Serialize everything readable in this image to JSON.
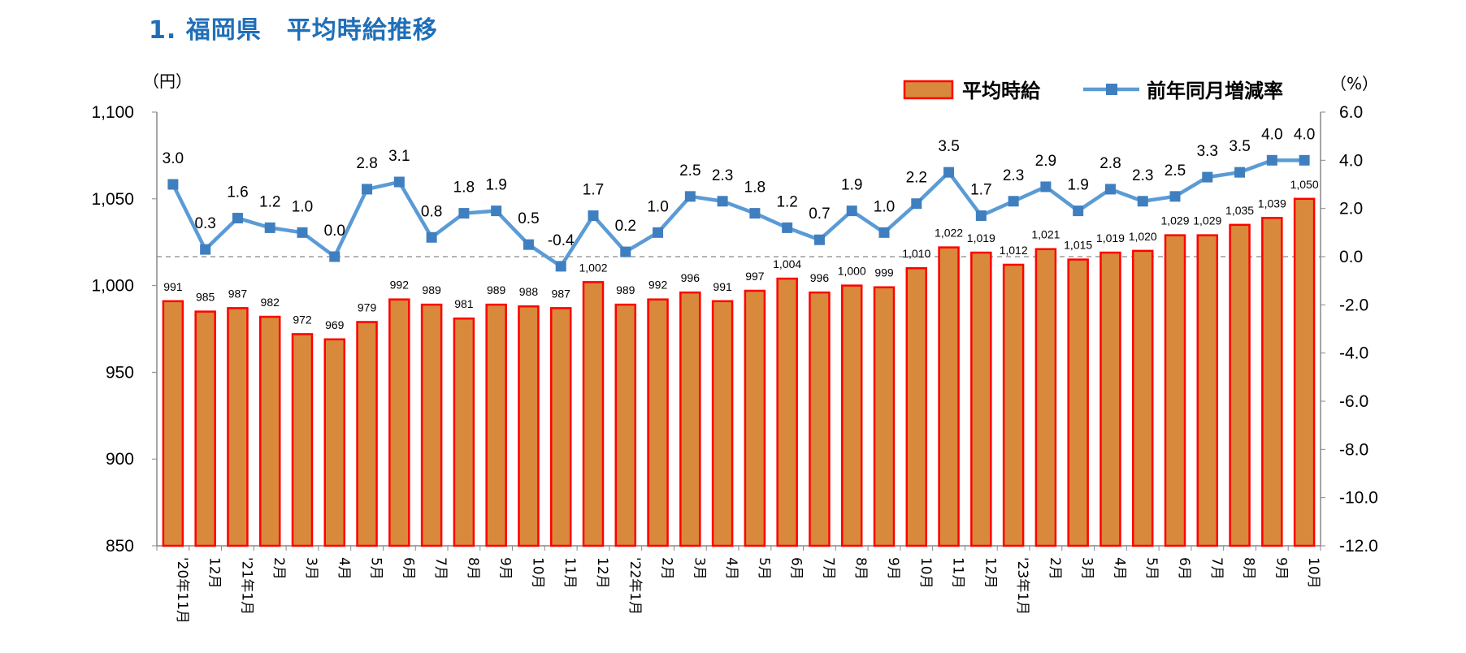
{
  "page": {
    "title": "1.  福岡県　平均時給推移"
  },
  "chart_data": {
    "type": "bar+line",
    "title": "1.  福岡県　平均時給推移",
    "left_axis": {
      "unit_label": "（円）",
      "range": [
        850,
        1100
      ],
      "ticks": [
        "1,100",
        "1,050",
        "1,000",
        "950",
        "900",
        "850"
      ],
      "tick_values": [
        1100,
        1050,
        1000,
        950,
        900,
        850
      ]
    },
    "right_axis": {
      "unit_label": "（%）",
      "range": [
        -12,
        6
      ],
      "ticks": [
        "6.0",
        "4.0",
        "2.0",
        "0.0",
        "-2.0",
        "-4.0",
        "-6.0",
        "-8.0",
        "-10.0",
        "-12.0"
      ],
      "tick_values": [
        6,
        4,
        2,
        0,
        -2,
        -4,
        -6,
        -8,
        -10,
        -12
      ]
    },
    "categories": [
      "'20年11月",
      "12月",
      "'21年1月",
      "2月",
      "3月",
      "4月",
      "5月",
      "6月",
      "7月",
      "8月",
      "9月",
      "10月",
      "11月",
      "12月",
      "'22年1月",
      "2月",
      "3月",
      "4月",
      "5月",
      "6月",
      "7月",
      "8月",
      "9月",
      "10月",
      "11月",
      "12月",
      "'23年1月",
      "2月",
      "3月",
      "4月",
      "5月",
      "6月",
      "7月",
      "8月",
      "9月",
      "10月"
    ],
    "series": [
      {
        "name": "平均時給",
        "type": "bar",
        "axis": "left",
        "fill": "#D9893B",
        "stroke": "#FF0000",
        "values": [
          991,
          985,
          987,
          982,
          972,
          969,
          979,
          992,
          989,
          981,
          989,
          988,
          987,
          1002,
          989,
          992,
          996,
          991,
          997,
          1004,
          996,
          1000,
          999,
          1010,
          1022,
          1019,
          1012,
          1021,
          1015,
          1019,
          1020,
          1029,
          1029,
          1035,
          1039,
          1050
        ],
        "labels": [
          "991",
          "985",
          "987",
          "982",
          "972",
          "969",
          "979",
          "992",
          "989",
          "981",
          "989",
          "988",
          "987",
          "1,002",
          "989",
          "992",
          "996",
          "991",
          "997",
          "1,004",
          "996",
          "1,000",
          "999",
          "1,010",
          "1,022",
          "1,019",
          "1,012",
          "1,021",
          "1,015",
          "1,019",
          "1,020",
          "1,029",
          "1,029",
          "1,035",
          "1,039",
          "1,050"
        ]
      },
      {
        "name": "前年同月増減率",
        "type": "line",
        "axis": "right",
        "color": "#5B9BD5",
        "marker_color": "#3F7FC0",
        "values": [
          3.0,
          0.3,
          1.6,
          1.2,
          1.0,
          0.0,
          2.8,
          3.1,
          0.8,
          1.8,
          1.9,
          0.5,
          -0.4,
          1.7,
          0.2,
          1.0,
          2.5,
          2.3,
          1.8,
          1.2,
          0.7,
          1.9,
          1.0,
          2.2,
          3.5,
          1.7,
          2.3,
          2.9,
          1.9,
          2.8,
          2.3,
          2.5,
          3.3,
          3.5,
          4.0,
          4.0
        ],
        "labels": [
          "3.0",
          "0.3",
          "1.6",
          "1.2",
          "1.0",
          "0.0",
          "2.8",
          "3.1",
          "0.8",
          "1.8",
          "1.9",
          "0.5",
          "-0.4",
          "1.7",
          "0.2",
          "1.0",
          "2.5",
          "2.3",
          "1.8",
          "1.2",
          "0.7",
          "1.9",
          "1.0",
          "2.2",
          "3.5",
          "1.7",
          "2.3",
          "2.9",
          "1.9",
          "2.8",
          "2.3",
          "2.5",
          "3.3",
          "3.5",
          "4.0",
          "4.0"
        ]
      }
    ],
    "legend": {
      "placement": "top-right",
      "bar_label": "平均時給",
      "line_label": "前年同月増減率"
    },
    "reference_line": {
      "value": 0.0,
      "axis": "right",
      "style": "dashed",
      "color": "#888888"
    }
  }
}
